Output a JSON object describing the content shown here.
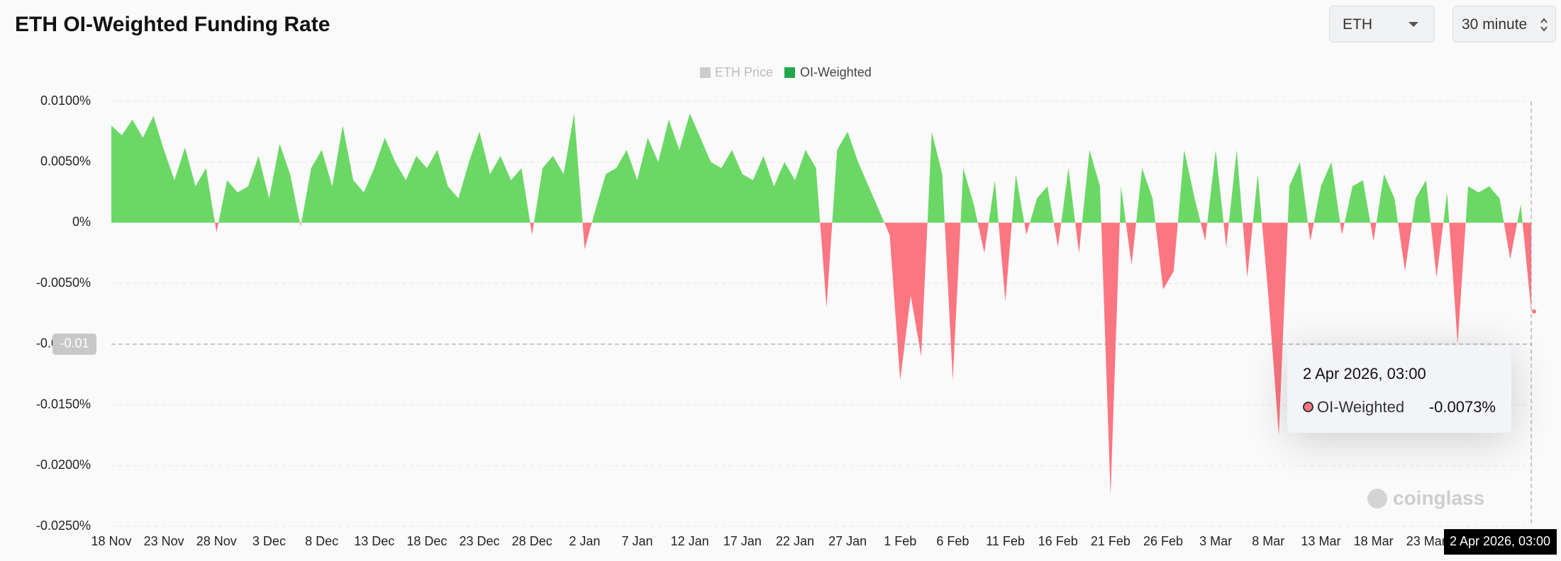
{
  "header": {
    "title": "ETH OI-Weighted Funding Rate",
    "coin": "ETH",
    "interval": "30 minute"
  },
  "chart_data": {
    "type": "area",
    "legend_hidden": [
      "ETH Price"
    ],
    "categories": [
      "18 Nov",
      null,
      null,
      null,
      null,
      "23 Nov",
      null,
      null,
      null,
      null,
      "28 Nov",
      null,
      null,
      null,
      null,
      "3 Dec",
      null,
      null,
      null,
      null,
      "8 Dec",
      null,
      null,
      null,
      null,
      "13 Dec",
      null,
      null,
      null,
      null,
      "18 Dec",
      null,
      null,
      null,
      null,
      "23 Dec",
      null,
      null,
      null,
      null,
      "28 Dec",
      null,
      null,
      null,
      null,
      "2 Jan",
      null,
      null,
      null,
      null,
      "7 Jan",
      null,
      null,
      null,
      null,
      "12 Jan",
      null,
      null,
      null,
      null,
      "17 Jan",
      null,
      null,
      null,
      null,
      "22 Jan",
      null,
      null,
      null,
      null,
      "27 Jan",
      null,
      null,
      null,
      null,
      "1 Feb",
      null,
      null,
      null,
      null,
      "6 Feb",
      null,
      null,
      null,
      null,
      "11 Feb",
      null,
      null,
      null,
      null,
      "16 Feb",
      null,
      null,
      null,
      null,
      "21 Feb",
      null,
      null,
      null,
      null,
      "26 Feb",
      null,
      null,
      null,
      null,
      "3 Mar",
      null,
      null,
      null,
      null,
      "8 Mar",
      null,
      null,
      null,
      null,
      "13 Mar",
      null,
      null,
      null,
      null,
      "18 Mar",
      null,
      null,
      null,
      null,
      "23 Mar",
      null,
      null,
      null,
      null,
      null,
      null,
      null,
      null,
      null,
      null
    ],
    "series": [
      {
        "name": "OI-Weighted",
        "color": "#6bd866",
        "negative_color": "#fb7681",
        "values": [
          0.008,
          0.0072,
          0.0085,
          0.007,
          0.0088,
          0.006,
          0.0035,
          0.0062,
          0.003,
          0.0045,
          -0.0008,
          0.0035,
          0.0025,
          0.003,
          0.0055,
          0.002,
          0.0065,
          0.004,
          -0.0003,
          0.0045,
          0.006,
          0.003,
          0.008,
          0.0035,
          0.0025,
          0.0045,
          0.007,
          0.005,
          0.0035,
          0.0055,
          0.0045,
          0.006,
          0.003,
          0.002,
          0.005,
          0.0075,
          0.004,
          0.0055,
          0.0035,
          0.0045,
          -0.001,
          0.0045,
          0.0055,
          0.004,
          0.009,
          -0.0022,
          0.001,
          0.004,
          0.0045,
          0.006,
          0.0035,
          0.007,
          0.005,
          0.0085,
          0.006,
          0.009,
          0.007,
          0.005,
          0.0045,
          0.006,
          0.004,
          0.0035,
          0.0055,
          0.003,
          0.005,
          0.0035,
          0.006,
          0.0045,
          -0.007,
          0.006,
          0.0075,
          0.005,
          0.003,
          0.001,
          -0.001,
          -0.013,
          -0.006,
          -0.011,
          0.0075,
          0.004,
          -0.013,
          0.0045,
          0.0015,
          -0.0025,
          0.0035,
          -0.0065,
          0.004,
          -0.001,
          0.002,
          0.003,
          -0.002,
          0.0045,
          -0.0025,
          0.006,
          0.003,
          -0.0225,
          0.003,
          -0.0035,
          0.0045,
          0.002,
          -0.0055,
          -0.004,
          0.006,
          0.002,
          -0.0015,
          0.006,
          -0.002,
          0.006,
          -0.0045,
          0.004,
          -0.006,
          -0.0175,
          0.003,
          0.005,
          -0.0015,
          0.003,
          0.005,
          -0.001,
          0.003,
          0.0035,
          -0.0015,
          0.004,
          0.002,
          -0.004,
          0.002,
          0.0035,
          -0.0045,
          0.0025,
          -0.01,
          0.003,
          0.0025,
          0.003,
          0.002,
          -0.003,
          0.0015,
          -0.0073
        ]
      }
    ],
    "ylim": [
      -0.025,
      0.01
    ],
    "yticks": [
      {
        "value": 0.01,
        "label": "0.0100%"
      },
      {
        "value": 0.005,
        "label": "0.0050%"
      },
      {
        "value": 0,
        "label": "0%"
      },
      {
        "value": -0.005,
        "label": "-0.0050%"
      },
      {
        "value": -0.01,
        "label": "-0.0100%"
      },
      {
        "value": -0.015,
        "label": "-0.0150%"
      },
      {
        "value": -0.02,
        "label": "-0.0200%"
      },
      {
        "value": -0.025,
        "label": "-0.0250%"
      }
    ],
    "grid": true,
    "crosshair": -0.01,
    "cursor_label": "2 Apr 2026, 03:00",
    "tooltip": {
      "title": "2 Apr 2026, 03:00",
      "value": -0.0073,
      "value_label": "-0.0073%"
    },
    "watermark": "coinglass"
  }
}
